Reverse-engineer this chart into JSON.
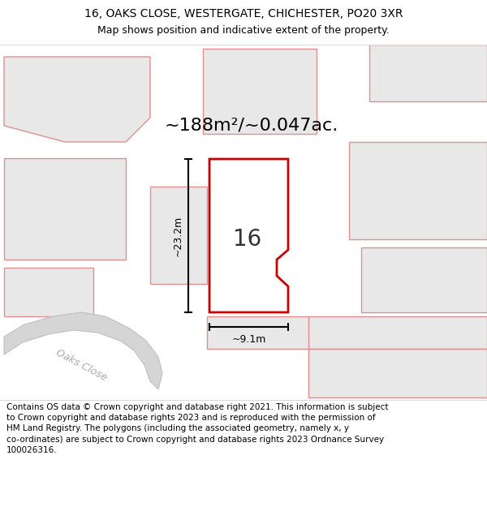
{
  "title_line1": "16, OAKS CLOSE, WESTERGATE, CHICHESTER, PO20 3XR",
  "title_line2": "Map shows position and indicative extent of the property.",
  "area_text": "~188m²/~0.047ac.",
  "label_16": "16",
  "dim_width": "~9.1m",
  "dim_height": "~23.2m",
  "road_label": "Oaks Close",
  "footer_text": "Contains OS data © Crown copyright and database right 2021. This information is subject\nto Crown copyright and database rights 2023 and is reproduced with the permission of\nHM Land Registry. The polygons (including the associated geometry, namely x, y\nco-ordinates) are subject to Crown copyright and database rights 2023 Ordnance Survey\n100026316.",
  "highlight_color": "#cc0000",
  "neighbor_ec": "#e09090",
  "neighbor_fc": "#e8e8e8",
  "title_fontsize": 10,
  "subtitle_fontsize": 9,
  "area_fontsize": 16,
  "label_fontsize": 20,
  "dim_fontsize": 9,
  "footer_fontsize": 7.5,
  "road_fontsize": 9
}
